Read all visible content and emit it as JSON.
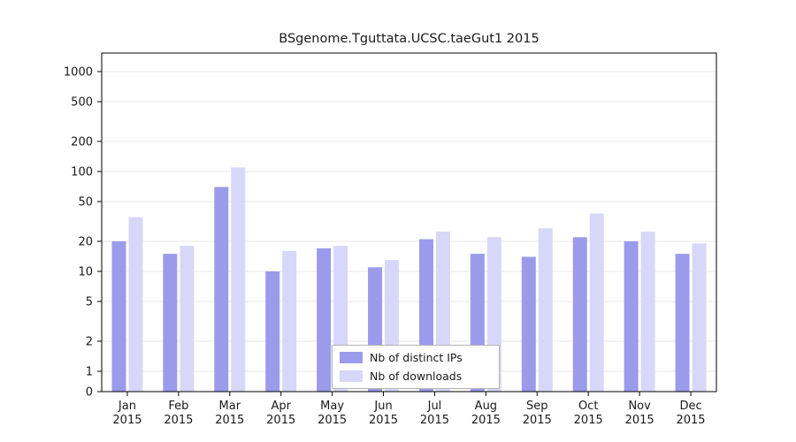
{
  "title": "BSgenome.Tguttata.UCSC.taeGut1 2015",
  "legend": {
    "series1_label": "Nb of distinct IPs",
    "series2_label": "Nb of downloads"
  },
  "colors": {
    "distinct_ips": "#9b9bec",
    "downloads": "#d7d7f9",
    "grid": "#e9e9e9",
    "axis": "#000000",
    "tick_text": "#1a1a1a",
    "legend_border": "#b3b3b3"
  },
  "chart_data": {
    "type": "bar",
    "title": "BSgenome.Tguttata.UCSC.taeGut1 2015",
    "months": [
      "Jan",
      "Feb",
      "Mar",
      "Apr",
      "May",
      "Jun",
      "Jul",
      "Aug",
      "Sep",
      "Oct",
      "Nov",
      "Dec"
    ],
    "year": "2015",
    "series": [
      {
        "name": "Nb of distinct IPs",
        "values": [
          20,
          15,
          70,
          10,
          17,
          11,
          21,
          15,
          14,
          22,
          20,
          15
        ]
      },
      {
        "name": "Nb of downloads",
        "values": [
          35,
          18,
          110,
          16,
          18,
          13,
          25,
          22,
          27,
          38,
          25,
          19
        ]
      }
    ],
    "y_ticks": [
      0,
      1,
      2,
      5,
      10,
      20,
      50,
      100,
      200,
      500,
      1000
    ],
    "y_scale": "symlog",
    "ylim": [
      0,
      1500
    ],
    "grid": true,
    "legend_position": "bottom-center-inside",
    "xlabel": "",
    "ylabel": ""
  }
}
